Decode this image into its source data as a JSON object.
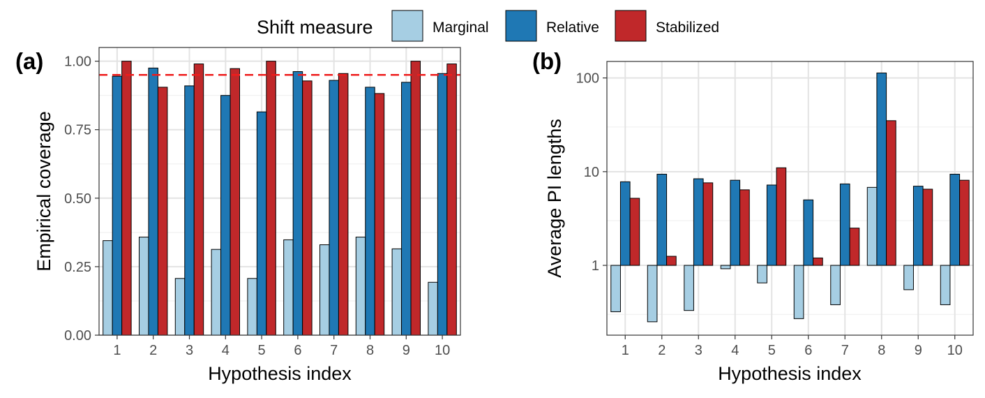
{
  "legend": {
    "title": "Shift measure",
    "items": [
      {
        "label": "Marginal",
        "color": "#a6cee3"
      },
      {
        "label": "Relative",
        "color": "#1f78b4"
      },
      {
        "label": "Stabilized",
        "color": "#c0282a"
      }
    ]
  },
  "chart_data": [
    {
      "type": "bar",
      "panel_label": "(a)",
      "xlabel": "Hypothesis index",
      "ylabel": "Empirical coverage",
      "categories": [
        "1",
        "2",
        "3",
        "4",
        "5",
        "6",
        "7",
        "8",
        "9",
        "10"
      ],
      "ylim": [
        0,
        1.05
      ],
      "yticks": [
        0,
        0.25,
        0.5,
        0.75,
        1.0
      ],
      "ytick_labels": [
        "0.00",
        "0.25",
        "0.50",
        "0.75",
        "1.00"
      ],
      "grid": true,
      "reference_line": {
        "y": 0.95,
        "color": "#ee1c1c",
        "style": "dashed"
      },
      "series": [
        {
          "name": "Marginal",
          "values": [
            0.345,
            0.358,
            0.207,
            0.313,
            0.207,
            0.348,
            0.33,
            0.358,
            0.315,
            0.193
          ]
        },
        {
          "name": "Relative",
          "values": [
            0.945,
            0.975,
            0.91,
            0.875,
            0.815,
            0.962,
            0.93,
            0.905,
            0.923,
            0.955
          ]
        },
        {
          "name": "Stabilized",
          "values": [
            1.0,
            0.905,
            0.99,
            0.973,
            1.0,
            0.928,
            0.955,
            0.882,
            1.0,
            0.99
          ]
        }
      ]
    },
    {
      "type": "bar",
      "panel_label": "(b)",
      "xlabel": "Hypothesis index",
      "ylabel": "Average PI lengths",
      "categories": [
        "1",
        "2",
        "3",
        "4",
        "5",
        "6",
        "7",
        "8",
        "9",
        "10"
      ],
      "yscale": "log10",
      "baseline": 1,
      "ylim": [
        0.18,
        150
      ],
      "yticks": [
        1,
        10,
        100
      ],
      "ytick_labels": [
        "1",
        "10",
        "100"
      ],
      "grid": true,
      "series": [
        {
          "name": "Marginal",
          "values": [
            0.32,
            0.25,
            0.33,
            0.92,
            0.65,
            0.27,
            0.38,
            6.8,
            0.55,
            0.38
          ]
        },
        {
          "name": "Relative",
          "values": [
            7.8,
            9.4,
            8.4,
            8.1,
            7.2,
            5.0,
            7.4,
            113,
            7.0,
            9.4
          ]
        },
        {
          "name": "Stabilized",
          "values": [
            5.2,
            1.25,
            7.6,
            6.4,
            11.0,
            1.2,
            2.5,
            35,
            6.5,
            8.1
          ]
        }
      ]
    }
  ]
}
